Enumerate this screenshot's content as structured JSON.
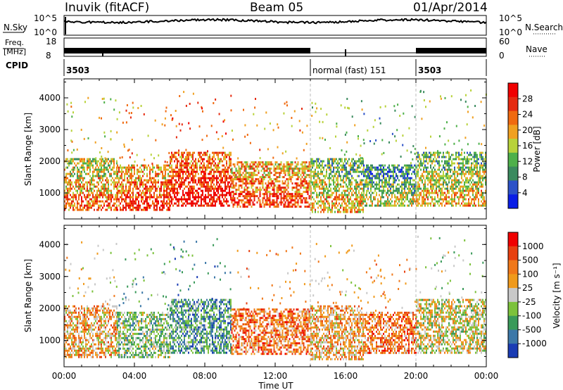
{
  "header": {
    "station": "Inuvik (fitACF)",
    "beam": "Beam 05",
    "date": "01/Apr/2014"
  },
  "top_panels": {
    "nsky_label": "N.Sky",
    "nsky_ticks": [
      "10^5",
      "10^0"
    ],
    "nsearch_label": "N.Search",
    "freq_label": "Freq.",
    "freq_unit": "[MHz]",
    "freq_ticks": [
      "18",
      "8"
    ],
    "nave_ticks": [
      "60",
      "0"
    ],
    "nave_label": "Nave",
    "cpid_label": "CPID",
    "cpid_segments": [
      {
        "label": "3503",
        "start_hour": 0,
        "end_hour": 14
      },
      {
        "label": "normal (fast) 151",
        "start_hour": 14,
        "end_hour": 20
      },
      {
        "label": "3503",
        "start_hour": 20,
        "end_hour": 24
      }
    ]
  },
  "colors": {
    "power": [
      "#0a1ee6",
      "#2c52c8",
      "#3a8a5e",
      "#4eb04a",
      "#b8d23a",
      "#f0a020",
      "#f06a10",
      "#e52a10",
      "#f00000"
    ],
    "velocity": [
      "#1a3cb4",
      "#3c78a8",
      "#3a9a5a",
      "#7cc23c",
      "#c8c8c8",
      "#f09a1c",
      "#f0781a",
      "#e84010",
      "#f00000"
    ]
  },
  "chart_data": [
    {
      "type": "heatmap",
      "name": "power",
      "xlabel": "",
      "ylabel": "Slant Range [km]",
      "xlim": [
        0,
        24
      ],
      "ylim": [
        180,
        4600
      ],
      "yticks": [
        "1000",
        "2000",
        "3000",
        "4000"
      ],
      "colorbar_label": "Power [dB]",
      "colorbar_ticks": [
        "28",
        "24",
        "20",
        "16",
        "12",
        "8",
        "4"
      ],
      "bands": [
        {
          "x0": 0.0,
          "x1": 3.0,
          "y0": 500,
          "y1": 2100,
          "level": 5
        },
        {
          "x0": 3.0,
          "x1": 6.0,
          "y0": 500,
          "y1": 1900,
          "level": 6
        },
        {
          "x0": 6.0,
          "x1": 9.5,
          "y0": 600,
          "y1": 2300,
          "level": 7
        },
        {
          "x0": 9.5,
          "x1": 14.0,
          "y0": 550,
          "y1": 2000,
          "level": 6
        },
        {
          "x0": 14.0,
          "x1": 17.0,
          "y0": 400,
          "y1": 2100,
          "level": 4
        },
        {
          "x0": 17.0,
          "x1": 20.0,
          "y0": 600,
          "y1": 1900,
          "level": 3
        },
        {
          "x0": 20.0,
          "x1": 24.0,
          "y0": 600,
          "y1": 2300,
          "level": 4
        }
      ]
    },
    {
      "type": "heatmap",
      "name": "velocity",
      "xlabel": "Time UT",
      "ylabel": "Slant Range [km]",
      "xlim": [
        0,
        24
      ],
      "ylim": [
        180,
        4600
      ],
      "xticks": [
        "00:00",
        "04:00",
        "08:00",
        "12:00",
        "16:00",
        "20:00",
        "00:00"
      ],
      "yticks": [
        "1000",
        "2000",
        "3000",
        "4000"
      ],
      "colorbar_label": "Velocity [m s⁻¹]",
      "colorbar_ticks": [
        "1000",
        "500",
        "100",
        "25",
        "-25",
        "-100",
        "-500",
        "-1000"
      ],
      "bands": [
        {
          "x0": 0.0,
          "x1": 3.0,
          "y0": 500,
          "y1": 2100,
          "level": 5
        },
        {
          "x0": 3.0,
          "x1": 6.0,
          "y0": 500,
          "y1": 1900,
          "level": 3
        },
        {
          "x0": 6.0,
          "x1": 9.5,
          "y0": 600,
          "y1": 2300,
          "level": 2
        },
        {
          "x0": 9.5,
          "x1": 14.0,
          "y0": 550,
          "y1": 2000,
          "level": 6
        },
        {
          "x0": 14.0,
          "x1": 17.0,
          "y0": 400,
          "y1": 2100,
          "level": 5
        },
        {
          "x0": 17.0,
          "x1": 20.0,
          "y0": 600,
          "y1": 1900,
          "level": 6
        },
        {
          "x0": 20.0,
          "x1": 24.0,
          "y0": 600,
          "y1": 2300,
          "level": 4
        }
      ]
    }
  ]
}
